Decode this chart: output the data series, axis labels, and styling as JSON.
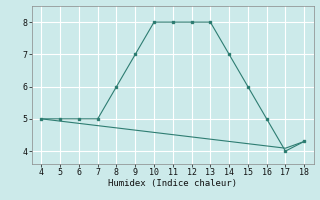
{
  "xlabel": "Humidex (Indice chaleur)",
  "xlim": [
    3.5,
    18.5
  ],
  "ylim": [
    3.6,
    8.5
  ],
  "xticks": [
    4,
    5,
    6,
    7,
    8,
    9,
    10,
    11,
    12,
    13,
    14,
    15,
    16,
    17,
    18
  ],
  "yticks": [
    4,
    5,
    6,
    7,
    8
  ],
  "bg_color": "#cceaea",
  "grid_color": "#ffffff",
  "line_color": "#2e7d72",
  "main_x": [
    4,
    5,
    6,
    7,
    8,
    9,
    10,
    11,
    12,
    13,
    14,
    15,
    16,
    17,
    18
  ],
  "main_y": [
    5.0,
    5.0,
    5.0,
    5.0,
    6.0,
    7.0,
    8.0,
    8.0,
    8.0,
    8.0,
    7.0,
    6.0,
    5.0,
    4.0,
    4.3
  ],
  "sec_x": [
    4,
    5,
    6,
    7,
    8,
    9,
    10,
    11,
    12,
    13,
    14,
    15,
    16,
    17,
    18
  ],
  "sec_y": [
    5.0,
    4.93,
    4.86,
    4.79,
    4.72,
    4.65,
    4.58,
    4.51,
    4.44,
    4.37,
    4.3,
    4.23,
    4.16,
    4.09,
    4.3
  ]
}
